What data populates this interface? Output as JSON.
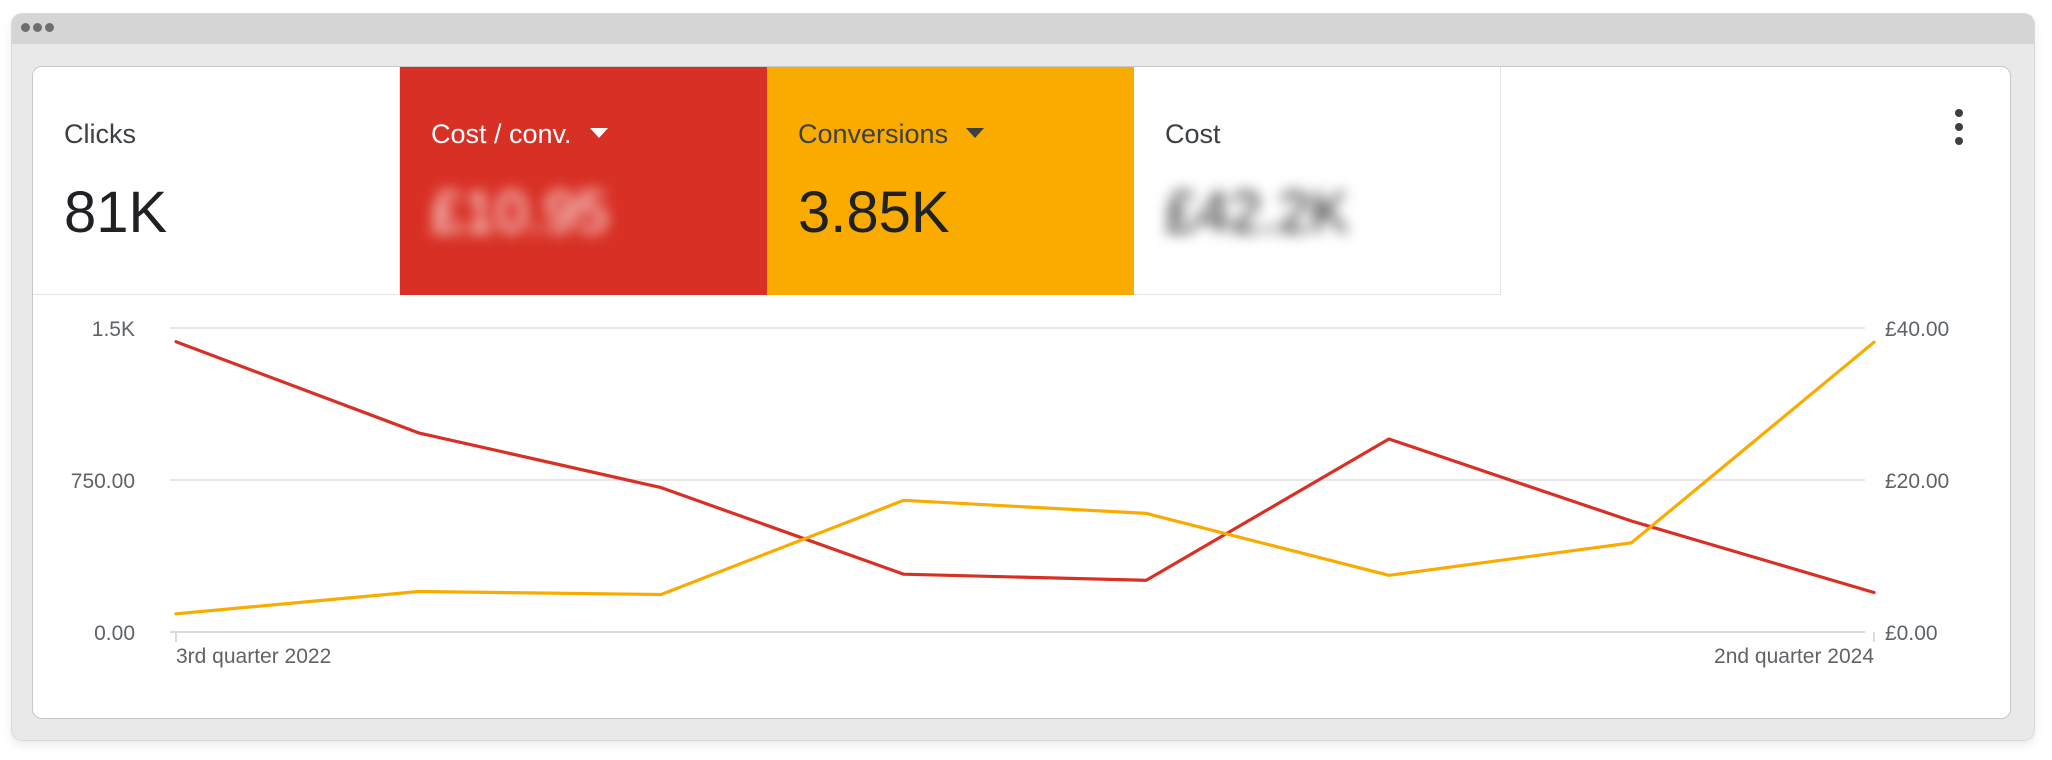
{
  "colors": {
    "cost_per_conv": "#d93025",
    "conversions": "#f9ab00",
    "grid": "#e6e6e6",
    "axis_text": "#5f6368"
  },
  "metrics": [
    {
      "title": "Clicks",
      "value": "81K",
      "selected": false,
      "dropdown": false
    },
    {
      "title": "Cost / conv.",
      "value": "£10.95",
      "selected": true,
      "dropdown": true,
      "value_blurred": true
    },
    {
      "title": "Conversions",
      "value": "3.85K",
      "selected": true,
      "dropdown": true
    },
    {
      "title": "Cost",
      "value": "£42.2K",
      "selected": false,
      "dropdown": false,
      "value_blurred": true
    }
  ],
  "menu": {
    "icon": "more-vert-icon"
  },
  "chart_data": {
    "type": "line",
    "x_labels": [
      "3rd quarter 2022",
      "2nd quarter 2024"
    ],
    "left_axis": {
      "ticks": [
        "0.00",
        "750.00",
        "1.5K"
      ],
      "range": [
        0,
        1500
      ]
    },
    "right_axis": {
      "ticks": [
        "£0.00",
        "£20.00",
        "£40.00"
      ],
      "range": [
        0,
        40
      ]
    },
    "grid": true,
    "series": [
      {
        "metric": "Cost / conv.",
        "axis": "right",
        "color": "#d93025",
        "values": [
          38.2,
          26.2,
          19.0,
          7.6,
          6.8,
          25.4,
          14.6,
          5.2
        ]
      },
      {
        "metric": "Conversions",
        "axis": "left",
        "color": "#f9ab00",
        "values": [
          90,
          200,
          185,
          650,
          585,
          280,
          440,
          1430
        ]
      }
    ]
  }
}
